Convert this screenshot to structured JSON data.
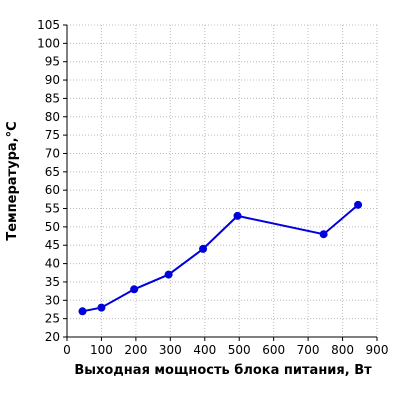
{
  "chart_data": {
    "type": "line",
    "title": "",
    "xlabel": "Выходная мощность блока питания, Вт",
    "ylabel": "Температура,°C",
    "xlim": [
      0,
      900
    ],
    "ylim": [
      20,
      105
    ],
    "x_ticks": [
      "0",
      "100",
      "200",
      "300",
      "400",
      "500",
      "600",
      "700",
      "800",
      "900"
    ],
    "y_ticks": [
      "20",
      "25",
      "30",
      "35",
      "40",
      "45",
      "50",
      "55",
      "60",
      "65",
      "70",
      "75",
      "80",
      "85",
      "90",
      "95",
      "100",
      "105"
    ],
    "grid": true,
    "series": [
      {
        "x": [
          45,
          100,
          195,
          295,
          395,
          495,
          745,
          845
        ],
        "y": [
          27,
          28,
          33,
          37,
          44,
          53,
          48,
          56
        ]
      }
    ],
    "colors": {
      "series": "#0000dd",
      "grid": "#bbbbbb",
      "axis": "#000000"
    }
  }
}
